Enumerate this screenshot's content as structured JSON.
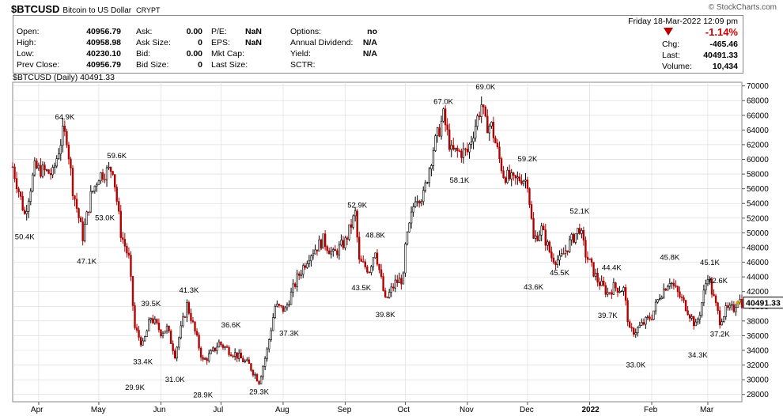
{
  "header": {
    "symbol": "$BTCUSD",
    "name": "Bitcoin to US Dollar",
    "exchange": "CRYPT",
    "copyright": "© StockCharts.com",
    "datetime": "Friday  18-Mar-2022  12:09 pm",
    "pct_change": "-1.14%",
    "left_quotes": [
      {
        "label": "Open:",
        "value": "40956.79"
      },
      {
        "label": "High:",
        "value": "40958.98"
      },
      {
        "label": "Low:",
        "value": "40230.10"
      },
      {
        "label": "Prev Close:",
        "value": "40956.79"
      }
    ],
    "mid_quotes": [
      {
        "label": "Ask:",
        "value": "0.00"
      },
      {
        "label": "Ask Size:",
        "value": "0"
      },
      {
        "label": "Bid:",
        "value": "0.00"
      },
      {
        "label": "Bid Size:",
        "value": "0"
      }
    ],
    "mid2_quotes": [
      {
        "label": "P/E:",
        "value": "NaN"
      },
      {
        "label": "EPS:",
        "value": "NaN"
      },
      {
        "label": "Mkt Cap:",
        "value": ""
      },
      {
        "label": "Last Size:",
        "value": ""
      }
    ],
    "mid3_quotes": [
      {
        "label": "Options:",
        "value": "no"
      },
      {
        "label": "Annual Dividend:",
        "value": "N/A"
      },
      {
        "label": "Yield:",
        "value": "N/A"
      },
      {
        "label": "SCTR:",
        "value": ""
      }
    ],
    "right_quotes": [
      {
        "label": "Chg:",
        "value": "-465.46"
      },
      {
        "label": "Last:",
        "value": "40491.33"
      },
      {
        "label": "Volume:",
        "value": "10,434"
      }
    ],
    "title_line": "$BTCUSD (Daily) 40491.33",
    "last_price_tag": "40491.33"
  },
  "colors": {
    "up": "#000000",
    "down": "#b30000",
    "grid": "#d9d9d9",
    "tag": "#000000",
    "last_marker": "#d4a000"
  },
  "chart_data": {
    "type": "candlestick",
    "title": "$BTCUSD (Daily) 40491.33",
    "ylim": [
      27000,
      70500
    ],
    "y_ticks": [
      28000,
      30000,
      32000,
      34000,
      36000,
      38000,
      40000,
      42000,
      44000,
      46000,
      48000,
      50000,
      52000,
      54000,
      56000,
      58000,
      60000,
      62000,
      64000,
      66000,
      68000,
      70000
    ],
    "y_tick_labels": [
      "28000",
      "30000",
      "32000",
      "34000",
      "36000",
      "38000",
      "40000",
      "42000",
      "44000",
      "46000",
      "48000",
      "50000",
      "52000",
      "54000",
      "56000",
      "58000",
      "60000",
      "62000",
      "64000",
      "66000",
      "68000",
      "70000"
    ],
    "x_range": [
      "2021-03-19",
      "2022-03-18"
    ],
    "month_ticks": [
      {
        "label": "Apr",
        "date": "2021-04-01"
      },
      {
        "label": "May",
        "date": "2021-05-01"
      },
      {
        "label": "Jun",
        "date": "2021-06-01"
      },
      {
        "label": "Jul",
        "date": "2021-07-01"
      },
      {
        "label": "Aug",
        "date": "2021-08-01"
      },
      {
        "label": "Sep",
        "date": "2021-09-01"
      },
      {
        "label": "Oct",
        "date": "2021-10-01"
      },
      {
        "label": "Nov",
        "date": "2021-11-01"
      },
      {
        "label": "Dec",
        "date": "2021-12-01"
      },
      {
        "label": "2022",
        "date": "2022-01-01",
        "bold": true
      },
      {
        "label": "Feb",
        "date": "2022-02-01"
      },
      {
        "label": "Mar",
        "date": "2022-03-01"
      }
    ],
    "closes": [
      {
        "date": "2021-03-19",
        "close": 59000
      },
      {
        "date": "2021-03-25",
        "close": 52500
      },
      {
        "date": "2021-03-30",
        "close": 58800
      },
      {
        "date": "2021-04-08",
        "close": 58000
      },
      {
        "date": "2021-04-13",
        "close": 63500
      },
      {
        "date": "2021-04-15",
        "close": 63000
      },
      {
        "date": "2021-04-18",
        "close": 56000
      },
      {
        "date": "2021-04-23",
        "close": 49500
      },
      {
        "date": "2021-04-27",
        "close": 55000
      },
      {
        "date": "2021-05-01",
        "close": 57800
      },
      {
        "date": "2021-05-08",
        "close": 58800
      },
      {
        "date": "2021-05-12",
        "close": 50000
      },
      {
        "date": "2021-05-16",
        "close": 46500
      },
      {
        "date": "2021-05-19",
        "close": 37000
      },
      {
        "date": "2021-05-23",
        "close": 34700
      },
      {
        "date": "2021-05-27",
        "close": 38500
      },
      {
        "date": "2021-06-01",
        "close": 36500
      },
      {
        "date": "2021-06-04",
        "close": 37000
      },
      {
        "date": "2021-06-08",
        "close": 33500
      },
      {
        "date": "2021-06-14",
        "close": 40200
      },
      {
        "date": "2021-06-16",
        "close": 38500
      },
      {
        "date": "2021-06-22",
        "close": 32500
      },
      {
        "date": "2021-06-26",
        "close": 33500
      },
      {
        "date": "2021-06-30",
        "close": 35000
      },
      {
        "date": "2021-07-05",
        "close": 34000
      },
      {
        "date": "2021-07-08",
        "close": 33500
      },
      {
        "date": "2021-07-15",
        "close": 32000
      },
      {
        "date": "2021-07-20",
        "close": 29800
      },
      {
        "date": "2021-07-24",
        "close": 34000
      },
      {
        "date": "2021-07-28",
        "close": 40000
      },
      {
        "date": "2021-08-02",
        "close": 39500
      },
      {
        "date": "2021-08-08",
        "close": 43800
      },
      {
        "date": "2021-08-14",
        "close": 47000
      },
      {
        "date": "2021-08-21",
        "close": 49000
      },
      {
        "date": "2021-08-26",
        "close": 47000
      },
      {
        "date": "2021-09-01",
        "close": 48800
      },
      {
        "date": "2021-09-06",
        "close": 52600
      },
      {
        "date": "2021-09-08",
        "close": 46000
      },
      {
        "date": "2021-09-13",
        "close": 45000
      },
      {
        "date": "2021-09-16",
        "close": 47800
      },
      {
        "date": "2021-09-21",
        "close": 40700
      },
      {
        "date": "2021-09-26",
        "close": 43200
      },
      {
        "date": "2021-09-30",
        "close": 43800
      },
      {
        "date": "2021-10-01",
        "close": 48000
      },
      {
        "date": "2021-10-06",
        "close": 55000
      },
      {
        "date": "2021-10-10",
        "close": 55000
      },
      {
        "date": "2021-10-15",
        "close": 61500
      },
      {
        "date": "2021-10-20",
        "close": 65900
      },
      {
        "date": "2021-10-24",
        "close": 61000
      },
      {
        "date": "2021-10-28",
        "close": 61000
      },
      {
        "date": "2021-11-01",
        "close": 61000
      },
      {
        "date": "2021-11-08",
        "close": 67500
      },
      {
        "date": "2021-11-10",
        "close": 64800
      },
      {
        "date": "2021-11-13",
        "close": 64500
      },
      {
        "date": "2021-11-17",
        "close": 60000
      },
      {
        "date": "2021-11-19",
        "close": 58000
      },
      {
        "date": "2021-11-24",
        "close": 57000
      },
      {
        "date": "2021-11-28",
        "close": 57500
      },
      {
        "date": "2021-12-01",
        "close": 57000
      },
      {
        "date": "2021-12-04",
        "close": 49000
      },
      {
        "date": "2021-12-08",
        "close": 50500
      },
      {
        "date": "2021-12-13",
        "close": 46700
      },
      {
        "date": "2021-12-17",
        "close": 46200
      },
      {
        "date": "2021-12-22",
        "close": 48600
      },
      {
        "date": "2021-12-27",
        "close": 50700
      },
      {
        "date": "2021-12-30",
        "close": 47100
      },
      {
        "date": "2022-01-05",
        "close": 43500
      },
      {
        "date": "2022-01-10",
        "close": 41800
      },
      {
        "date": "2022-01-13",
        "close": 42600
      },
      {
        "date": "2022-01-18",
        "close": 42300
      },
      {
        "date": "2022-01-21",
        "close": 36500
      },
      {
        "date": "2022-01-24",
        "close": 36700
      },
      {
        "date": "2022-01-28",
        "close": 37700
      },
      {
        "date": "2022-02-01",
        "close": 38700
      },
      {
        "date": "2022-02-05",
        "close": 41500
      },
      {
        "date": "2022-02-10",
        "close": 43600
      },
      {
        "date": "2022-02-13",
        "close": 42200
      },
      {
        "date": "2022-02-18",
        "close": 40000
      },
      {
        "date": "2022-02-23",
        "close": 37300
      },
      {
        "date": "2022-02-25",
        "close": 39200
      },
      {
        "date": "2022-03-01",
        "close": 44400
      },
      {
        "date": "2022-03-03",
        "close": 42000
      },
      {
        "date": "2022-03-07",
        "close": 38100
      },
      {
        "date": "2022-03-10",
        "close": 39400
      },
      {
        "date": "2022-03-14",
        "close": 39700
      },
      {
        "date": "2022-03-16",
        "close": 41100
      },
      {
        "date": "2022-03-18",
        "close": 40491
      }
    ],
    "annotations": [
      {
        "label": "50.4K",
        "date": "2021-03-25",
        "value": 50400,
        "pos": "below"
      },
      {
        "label": "64.9K",
        "date": "2021-04-14",
        "value": 64900,
        "pos": "above"
      },
      {
        "label": "47.1K",
        "date": "2021-04-25",
        "value": 47100,
        "pos": "below"
      },
      {
        "label": "59.6K",
        "date": "2021-05-10",
        "value": 59600,
        "pos": "above"
      },
      {
        "label": "53.0K",
        "date": "2021-05-04",
        "value": 53000,
        "pos": "below"
      },
      {
        "label": "29.9K",
        "date": "2021-05-19",
        "value": 29900,
        "pos": "below"
      },
      {
        "label": "39.5K",
        "date": "2021-05-27",
        "value": 39500,
        "pos": "above"
      },
      {
        "label": "33.4K",
        "date": "2021-05-23",
        "value": 33400,
        "pos": "below"
      },
      {
        "label": "41.3K",
        "date": "2021-06-15",
        "value": 41300,
        "pos": "above"
      },
      {
        "label": "31.0K",
        "date": "2021-06-08",
        "value": 31000,
        "pos": "below"
      },
      {
        "label": "28.9K",
        "date": "2021-06-22",
        "value": 28900,
        "pos": "below"
      },
      {
        "label": "36.6K",
        "date": "2021-07-06",
        "value": 36600,
        "pos": "above"
      },
      {
        "label": "29.3K",
        "date": "2021-07-20",
        "value": 29300,
        "pos": "below"
      },
      {
        "label": "37.3K",
        "date": "2021-08-04",
        "value": 37300,
        "pos": "below"
      },
      {
        "label": "52.9K",
        "date": "2021-09-07",
        "value": 52900,
        "pos": "above"
      },
      {
        "label": "48.8K",
        "date": "2021-09-16",
        "value": 48800,
        "pos": "above"
      },
      {
        "label": "43.5K",
        "date": "2021-09-09",
        "value": 43500,
        "pos": "below"
      },
      {
        "label": "39.8K",
        "date": "2021-09-21",
        "value": 39800,
        "pos": "below"
      },
      {
        "label": "67.0K",
        "date": "2021-10-20",
        "value": 67000,
        "pos": "above"
      },
      {
        "label": "58.1K",
        "date": "2021-10-28",
        "value": 58100,
        "pos": "below"
      },
      {
        "label": "69.0K",
        "date": "2021-11-10",
        "value": 69000,
        "pos": "above"
      },
      {
        "label": "59.2K",
        "date": "2021-12-01",
        "value": 59200,
        "pos": "above"
      },
      {
        "label": "43.6K",
        "date": "2021-12-04",
        "value": 43600,
        "pos": "below"
      },
      {
        "label": "45.5K",
        "date": "2021-12-17",
        "value": 45500,
        "pos": "below"
      },
      {
        "label": "52.1K",
        "date": "2021-12-27",
        "value": 52100,
        "pos": "above"
      },
      {
        "label": "44.4K",
        "date": "2022-01-12",
        "value": 44400,
        "pos": "above"
      },
      {
        "label": "39.7K",
        "date": "2022-01-10",
        "value": 39700,
        "pos": "below"
      },
      {
        "label": "33.0K",
        "date": "2022-01-24",
        "value": 33000,
        "pos": "below"
      },
      {
        "label": "45.8K",
        "date": "2022-02-10",
        "value": 45800,
        "pos": "above"
      },
      {
        "label": "45.1K",
        "date": "2022-03-02",
        "value": 45100,
        "pos": "above"
      },
      {
        "label": "42.6K",
        "date": "2022-03-06",
        "value": 42600,
        "pos": "above"
      },
      {
        "label": "34.3K",
        "date": "2022-02-24",
        "value": 34300,
        "pos": "below"
      },
      {
        "label": "37.2K",
        "date": "2022-03-07",
        "value": 37200,
        "pos": "below"
      }
    ]
  }
}
